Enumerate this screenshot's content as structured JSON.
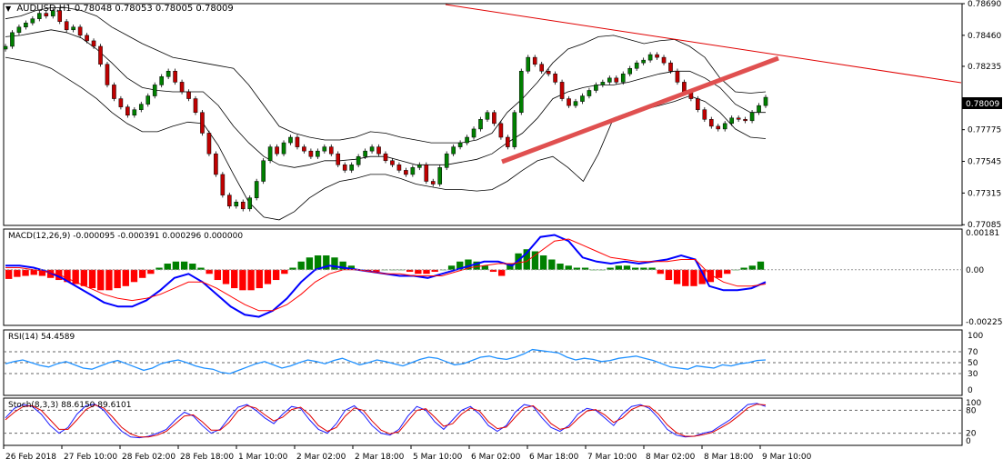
{
  "header": {
    "symbol": "AUDUSD,H1",
    "ohlc": "0.78048 0.78053 0.78005 0.78009"
  },
  "price_axis": {
    "ticks": [
      "0.78690",
      "0.78460",
      "0.78235",
      "0.78009",
      "0.77775",
      "0.77545",
      "0.77315",
      "0.77085"
    ],
    "tick_values": [
      0.7869,
      0.7846,
      0.78235,
      0.78005,
      0.77775,
      0.77545,
      0.77315,
      0.77085
    ],
    "current_price": "0.78009"
  },
  "macd": {
    "label": "MACD(12,26,9) -0.000095 -0.000391 0.000296 0.000000",
    "ticks": [
      "0.00181",
      "0.00",
      "-0.002254"
    ]
  },
  "rsi": {
    "label": "RSI(14) 54.4589",
    "ticks": [
      "100",
      "70",
      "50",
      "30",
      "0"
    ]
  },
  "stoch": {
    "label": "Stoch(8,3,3) 88.6150 89.6101",
    "ticks": [
      "100",
      "80",
      "20",
      "0"
    ]
  },
  "time_axis": {
    "labels": [
      "26 Feb 2018",
      "27 Feb 10:00",
      "28 Feb 02:00",
      "28 Feb 18:00",
      "1 Mar 10:00",
      "2 Mar 02:00",
      "2 Mar 18:00",
      "5 Mar 10:00",
      "6 Mar 02:00",
      "6 Mar 18:00",
      "7 Mar 10:00",
      "8 Mar 02:00",
      "8 Mar 18:00",
      "9 Mar 10:00"
    ]
  },
  "colors": {
    "bull_candle": "#008000",
    "bear_candle": "#c00000",
    "macd_line": "#0000ff",
    "macd_signal": "#ff0000",
    "rsi_line": "#1e90ff",
    "trend_line_thin": "#e00000",
    "trend_line_thick": "#e05050"
  },
  "chart_data": [
    {
      "type": "candlestick",
      "title": "AUDUSD,H1",
      "ylim": [
        0.7708,
        0.7869
      ],
      "x": [
        "26 Feb 2018",
        "27 Feb 10:00",
        "28 Feb 02:00",
        "28 Feb 18:00",
        "1 Mar 10:00",
        "2 Mar 02:00",
        "2 Mar 18:00",
        "5 Mar 10:00",
        "6 Mar 02:00",
        "6 Mar 18:00",
        "7 Mar 10:00",
        "8 Mar 02:00",
        "8 Mar 18:00",
        "9 Mar 10:00"
      ],
      "close_path": [
        0.7838,
        0.7848,
        0.7852,
        0.7855,
        0.7858,
        0.7862,
        0.786,
        0.7864,
        0.7856,
        0.785,
        0.7852,
        0.7846,
        0.7842,
        0.7838,
        0.7825,
        0.781,
        0.78,
        0.7794,
        0.7788,
        0.7792,
        0.7796,
        0.7802,
        0.781,
        0.7816,
        0.782,
        0.7812,
        0.7805,
        0.78,
        0.779,
        0.7775,
        0.776,
        0.7745,
        0.773,
        0.7722,
        0.7725,
        0.772,
        0.7728,
        0.774,
        0.7755,
        0.7765,
        0.776,
        0.7768,
        0.7772,
        0.7765,
        0.7762,
        0.7758,
        0.7762,
        0.7765,
        0.776,
        0.7752,
        0.7748,
        0.7752,
        0.7758,
        0.7762,
        0.7765,
        0.776,
        0.7755,
        0.7752,
        0.7748,
        0.7745,
        0.775,
        0.7752,
        0.774,
        0.7738,
        0.775,
        0.776,
        0.7765,
        0.7768,
        0.7772,
        0.7778,
        0.7785,
        0.779,
        0.7782,
        0.7772,
        0.7765,
        0.779,
        0.782,
        0.783,
        0.7825,
        0.782,
        0.7818,
        0.7812,
        0.78,
        0.7795,
        0.7798,
        0.7802,
        0.7806,
        0.781,
        0.7812,
        0.7815,
        0.7812,
        0.7818,
        0.7822,
        0.7826,
        0.7828,
        0.7832,
        0.783,
        0.7826,
        0.782,
        0.7812,
        0.7805,
        0.78,
        0.7792,
        0.7785,
        0.778,
        0.7778,
        0.7782,
        0.7786,
        0.7785,
        0.7784,
        0.779,
        0.7795,
        0.7801
      ],
      "bands": {
        "upper": [
          0.7858,
          0.786,
          0.7864,
          0.7866,
          0.7866,
          0.7864,
          0.786,
          0.7852,
          0.7846,
          0.784,
          0.7835,
          0.783,
          0.7828,
          0.7826,
          0.7824,
          0.7822,
          0.781,
          0.7795,
          0.778,
          0.7775,
          0.7772,
          0.777,
          0.777,
          0.7772,
          0.7776,
          0.7775,
          0.7772,
          0.777,
          0.7768,
          0.7768,
          0.7768,
          0.777,
          0.7775,
          0.779,
          0.78,
          0.7812,
          0.7826,
          0.7836,
          0.784,
          0.7845,
          0.7846,
          0.7843,
          0.784,
          0.7842,
          0.7843,
          0.7838,
          0.783,
          0.7815,
          0.7805,
          0.7804,
          0.7805
        ],
        "middle": [
          0.7845,
          0.7846,
          0.7848,
          0.785,
          0.7848,
          0.7844,
          0.7836,
          0.7826,
          0.7815,
          0.7808,
          0.7806,
          0.7805,
          0.7805,
          0.7805,
          0.7795,
          0.778,
          0.7768,
          0.7758,
          0.7752,
          0.775,
          0.7752,
          0.7755,
          0.7755,
          0.7756,
          0.7758,
          0.7758,
          0.7755,
          0.7752,
          0.7752,
          0.7752,
          0.7754,
          0.7756,
          0.776,
          0.7768,
          0.7775,
          0.7786,
          0.78,
          0.7805,
          0.7808,
          0.781,
          0.781,
          0.7812,
          0.7815,
          0.7818,
          0.782,
          0.782,
          0.7815,
          0.7808,
          0.7796,
          0.779,
          0.779
        ],
        "lower": [
          0.783,
          0.7828,
          0.7826,
          0.7822,
          0.7815,
          0.7808,
          0.78,
          0.779,
          0.7782,
          0.7776,
          0.7776,
          0.778,
          0.7783,
          0.7782,
          0.7766,
          0.7745,
          0.7725,
          0.7714,
          0.7712,
          0.7718,
          0.7728,
          0.7735,
          0.774,
          0.7742,
          0.7745,
          0.7745,
          0.7742,
          0.7738,
          0.7736,
          0.7734,
          0.7734,
          0.7733,
          0.7734,
          0.774,
          0.7748,
          0.7755,
          0.7758,
          0.775,
          0.774,
          0.776,
          0.7786,
          0.779,
          0.7792,
          0.7795,
          0.7798,
          0.7802,
          0.7798,
          0.779,
          0.7778,
          0.7772,
          0.7771
        ]
      }
    },
    {
      "type": "bar",
      "title": "MACD(12,26,9)",
      "values": [
        -0.00045,
        -0.00035,
        -0.0003,
        -0.00025,
        -0.0003,
        -0.0004,
        -0.0005,
        -0.0006,
        -0.0007,
        -0.0008,
        -0.0009,
        -0.001,
        -0.001,
        -0.0009,
        -0.0008,
        -0.0006,
        -0.0004,
        -0.0002,
        0.0001,
        0.0003,
        0.0004,
        0.0004,
        0.0003,
        0.0001,
        -0.0002,
        -0.0005,
        -0.0007,
        -0.0009,
        -0.001,
        -0.001,
        -0.0009,
        -0.0007,
        -0.0005,
        -0.0002,
        0.0001,
        0.0004,
        0.0006,
        0.0007,
        0.0007,
        0.0006,
        0.0004,
        0.0002,
        0.0,
        -0.0001,
        -0.0001,
        0.0,
        0.0,
        0.0,
        -0.0001,
        -0.0002,
        -0.0002,
        -0.0001,
        0.0,
        0.0002,
        0.0004,
        0.0005,
        0.0004,
        0.0002,
        -0.0001,
        -0.0003,
        0.0003,
        0.0008,
        0.001,
        0.0009,
        0.0007,
        0.0005,
        0.0003,
        0.0002,
        0.0001,
        0.0001,
        0.0,
        0.0,
        0.0001,
        0.0002,
        0.0002,
        0.0001,
        0.0001,
        0.0001,
        -0.0002,
        -0.0005,
        -0.0007,
        -0.0008,
        -0.0008,
        -0.0007,
        -0.0006,
        -0.0004,
        -0.0002,
        0.0,
        0.0001,
        0.0002,
        0.0004
      ],
      "macd_line": [
        0.0002,
        0.0002,
        0.0001,
        -0.0001,
        -0.0004,
        -0.0008,
        -0.0012,
        -0.0016,
        -0.0018,
        -0.0018,
        -0.0015,
        -0.001,
        -0.0004,
        -0.0002,
        -0.0006,
        -0.0012,
        -0.0018,
        -0.0022,
        -0.0023,
        -0.002,
        -0.0014,
        -0.0006,
        0.0,
        0.0002,
        0.0001,
        0.0,
        -0.0001,
        -0.0002,
        -0.0003,
        -0.0003,
        -0.0004,
        -0.0002,
        0.0,
        0.0002,
        0.0004,
        0.0004,
        0.0002,
        0.0008,
        0.0016,
        0.0017,
        0.0014,
        0.0006,
        0.0004,
        0.0003,
        0.0004,
        0.0003,
        0.0004,
        0.0005,
        0.0007,
        0.0005,
        -0.0008,
        -0.001,
        -0.001,
        -0.0009,
        -0.0006
      ],
      "signal_line": [
        0.0001,
        0.0001,
        0.0,
        -0.0001,
        -0.0003,
        -0.0006,
        -0.0009,
        -0.0012,
        -0.0014,
        -0.0015,
        -0.0014,
        -0.0012,
        -0.0009,
        -0.0006,
        -0.0006,
        -0.0009,
        -0.0013,
        -0.0017,
        -0.002,
        -0.002,
        -0.0017,
        -0.0012,
        -0.0006,
        -0.0002,
        0.0,
        0.0,
        -0.0001,
        -0.0002,
        -0.0002,
        -0.0003,
        -0.0003,
        -0.0003,
        -0.0001,
        0.0001,
        0.0002,
        0.0003,
        0.0003,
        0.0004,
        0.0009,
        0.0014,
        0.0015,
        0.0012,
        0.0009,
        0.0006,
        0.0005,
        0.0004,
        0.0004,
        0.0004,
        0.0005,
        0.0005,
        -0.0002,
        -0.0006,
        -0.0008,
        -0.0008,
        -0.0007
      ]
    },
    {
      "type": "line",
      "title": "RSI(14)",
      "ylim": [
        0,
        100
      ],
      "values": [
        48,
        52,
        55,
        50,
        45,
        42,
        48,
        52,
        46,
        40,
        38,
        44,
        50,
        54,
        48,
        42,
        36,
        40,
        48,
        52,
        55,
        50,
        44,
        40,
        38,
        32,
        30,
        36,
        42,
        48,
        52,
        46,
        40,
        44,
        50,
        55,
        52,
        48,
        54,
        58,
        52,
        46,
        50,
        55,
        52,
        48,
        44,
        50,
        56,
        60,
        58,
        52,
        46,
        48,
        54,
        60,
        62,
        58,
        56,
        60,
        66,
        74,
        72,
        70,
        68,
        60,
        55,
        58,
        56,
        52,
        54,
        58,
        60,
        62,
        58,
        54,
        48,
        42,
        40,
        38,
        44,
        42,
        40,
        46,
        44,
        48,
        50,
        54,
        55
      ]
    },
    {
      "type": "line",
      "title": "Stoch(8,3,3)",
      "ylim": [
        0,
        100
      ],
      "series": [
        {
          "name": "main",
          "values": [
            60,
            85,
            95,
            90,
            70,
            40,
            20,
            35,
            70,
            92,
            96,
            80,
            50,
            25,
            10,
            8,
            12,
            20,
            30,
            55,
            75,
            65,
            40,
            20,
            30,
            60,
            88,
            95,
            80,
            60,
            45,
            70,
            90,
            85,
            55,
            30,
            20,
            45,
            80,
            92,
            70,
            40,
            20,
            15,
            30,
            65,
            90,
            80,
            50,
            30,
            55,
            80,
            90,
            70,
            40,
            25,
            40,
            75,
            95,
            90,
            60,
            35,
            25,
            40,
            70,
            85,
            80,
            60,
            40,
            70,
            90,
            95,
            85,
            60,
            30,
            15,
            10,
            12,
            20,
            25,
            40,
            55,
            75,
            95,
            98,
            90
          ]
        },
        {
          "name": "signal",
          "values": [
            55,
            75,
            90,
            92,
            80,
            55,
            30,
            30,
            55,
            82,
            94,
            86,
            62,
            35,
            18,
            10,
            10,
            15,
            25,
            45,
            65,
            68,
            50,
            28,
            28,
            48,
            78,
            92,
            86,
            68,
            52,
            62,
            82,
            88,
            68,
            40,
            25,
            35,
            65,
            86,
            80,
            52,
            28,
            18,
            24,
            52,
            80,
            84,
            62,
            38,
            45,
            70,
            86,
            78,
            50,
            32,
            36,
            62,
            86,
            92,
            72,
            45,
            30,
            35,
            58,
            78,
            82,
            68,
            48,
            60,
            82,
            92,
            90,
            70,
            42,
            22,
            12,
            12,
            16,
            22,
            34,
            48,
            66,
            86,
            96,
            94
          ]
        }
      ]
    }
  ]
}
